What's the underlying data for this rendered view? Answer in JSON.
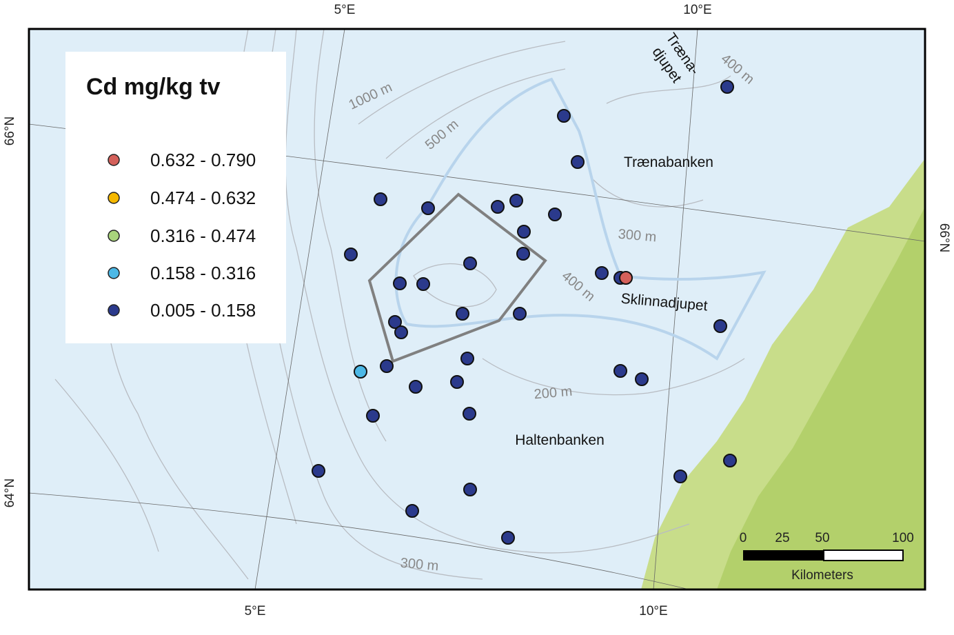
{
  "legend": {
    "title": "Cd mg/kg tv",
    "classes": [
      {
        "label": "0.632 - 0.790",
        "color": "#d4605a"
      },
      {
        "label": "0.474 - 0.632",
        "color": "#f5b800"
      },
      {
        "label": "0.316 - 0.474",
        "color": "#a9d47c"
      },
      {
        "label": "0.158 - 0.316",
        "color": "#4cb8e6"
      },
      {
        "label": "0.005 - 0.158",
        "color": "#2b3a8c"
      }
    ]
  },
  "graticule": {
    "top": [
      "5°E",
      "10°E"
    ],
    "bottom": [
      "5°E",
      "10°E"
    ],
    "left": [
      "66°N",
      "64°N"
    ],
    "right": [
      "66°N"
    ]
  },
  "places": {
    "traenadjupet": [
      "Træna-",
      "djupet"
    ],
    "traenabanken": "Trænabanken",
    "sklinnadjupet": "Sklinnadjupet",
    "haltenbanken": "Haltenbanken"
  },
  "contours": [
    "1000 m",
    "500 m",
    "300 m",
    "400 m",
    "200 m",
    "300 m",
    "400 m"
  ],
  "scale": {
    "ticks": [
      "0",
      "25",
      "50",
      "100"
    ],
    "unit": "Kilometers"
  }
}
